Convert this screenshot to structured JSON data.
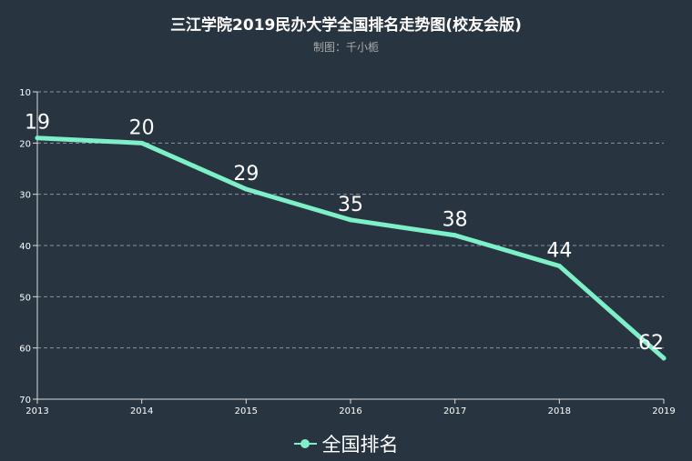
{
  "title": "三江学院2019民办大学全国排名走势图(校友会版)",
  "subtitle": "制图：千小栀",
  "colors": {
    "background": "#283440",
    "line": "#7ef0c8",
    "axis": "#dddddd",
    "grid": "#8a94a0",
    "label": "#ffffff"
  },
  "chart_data": {
    "type": "line",
    "title": "三江学院2019民办大学全国排名走势图(校友会版)",
    "subtitle": "制图：千小栀",
    "categories": [
      "2013",
      "2014",
      "2015",
      "2016",
      "2017",
      "2018",
      "2019"
    ],
    "series": [
      {
        "name": "全国排名",
        "values": [
          19,
          20,
          29,
          35,
          38,
          44,
          62
        ]
      }
    ],
    "y_ticks": [
      10,
      20,
      30,
      40,
      50,
      60,
      70
    ],
    "ylim": [
      10,
      70
    ],
    "y_inverted": true,
    "grid": "dashed horizontal",
    "legend_position": "bottom-center",
    "xlabel": "",
    "ylabel": ""
  }
}
